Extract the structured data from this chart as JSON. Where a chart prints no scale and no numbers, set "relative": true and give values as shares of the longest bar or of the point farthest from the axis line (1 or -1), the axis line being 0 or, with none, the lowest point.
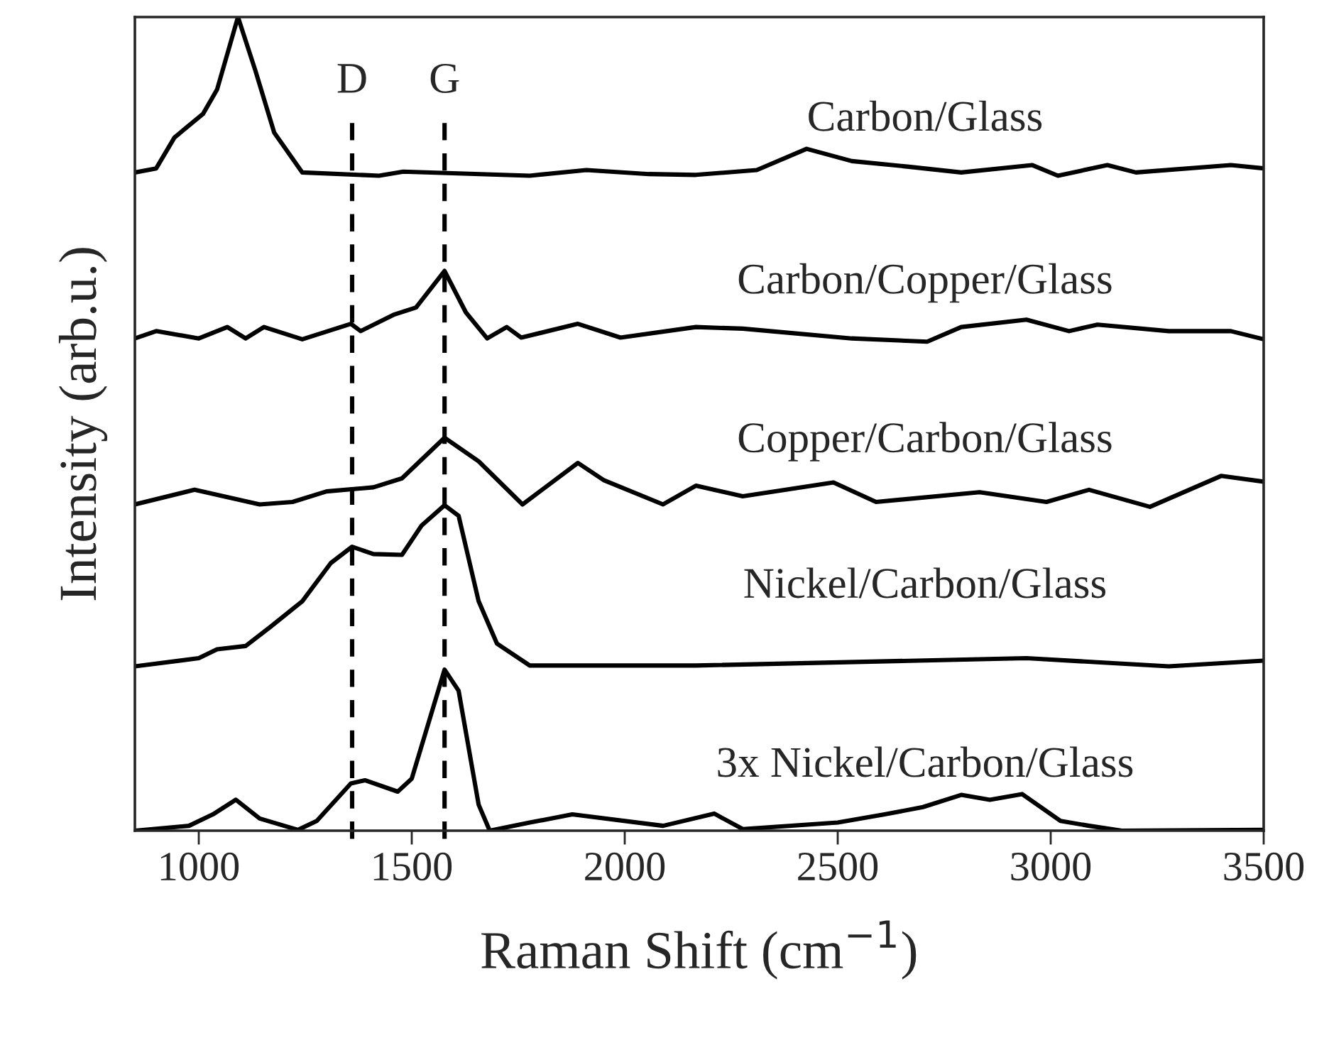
{
  "chart_data": {
    "type": "line",
    "relative": true,
    "xlabel": "Raman Shift (cm$^{−1}$)",
    "ylabel": "Intensity (arb.u.)",
    "xlim": [
      850,
      3500
    ],
    "xticks": [
      1000,
      1500,
      2000,
      2500,
      3000,
      3500
    ],
    "grid": false,
    "legend": false,
    "marker": "none",
    "line_style": "solid",
    "series": [
      {
        "name": "Carbon/Glass",
        "color": "#000000",
        "x": [
          850,
          900,
          943,
          1010,
          1043,
          1092,
          1133,
          1177,
          1243,
          1423,
          1480,
          1777,
          1910,
          2057,
          2167,
          2310,
          2427,
          2533,
          2667,
          2790,
          2957,
          3017,
          3133,
          3200,
          3423,
          3500
        ],
        "values": [
          0.809,
          0.814,
          0.852,
          0.881,
          0.911,
          1.0,
          0.934,
          0.858,
          0.809,
          0.805,
          0.81,
          0.805,
          0.812,
          0.807,
          0.806,
          0.812,
          0.838,
          0.823,
          0.816,
          0.809,
          0.818,
          0.805,
          0.818,
          0.809,
          0.818,
          0.814
        ]
      },
      {
        "name": "Carbon/Copper/Glass",
        "color": "#000000",
        "x": [
          850,
          900,
          1000,
          1067,
          1110,
          1153,
          1243,
          1357,
          1380,
          1457,
          1510,
          1577,
          1627,
          1677,
          1723,
          1757,
          1890,
          1990,
          2167,
          2277,
          2533,
          2710,
          2790,
          2943,
          3043,
          3110,
          3277,
          3423,
          3500
        ],
        "values": [
          0.605,
          0.614,
          0.605,
          0.619,
          0.605,
          0.619,
          0.604,
          0.623,
          0.614,
          0.634,
          0.643,
          0.688,
          0.637,
          0.605,
          0.619,
          0.606,
          0.623,
          0.606,
          0.619,
          0.617,
          0.605,
          0.601,
          0.619,
          0.628,
          0.614,
          0.622,
          0.614,
          0.614,
          0.604
        ]
      },
      {
        "name": "Copper/Carbon/Glass",
        "color": "#000000",
        "x": [
          850,
          990,
          1143,
          1220,
          1300,
          1410,
          1477,
          1577,
          1657,
          1760,
          1890,
          1950,
          2090,
          2167,
          2277,
          2490,
          2590,
          2833,
          2990,
          3090,
          3233,
          3400,
          3500
        ],
        "values": [
          0.401,
          0.419,
          0.401,
          0.404,
          0.417,
          0.422,
          0.433,
          0.483,
          0.454,
          0.401,
          0.452,
          0.431,
          0.401,
          0.424,
          0.411,
          0.428,
          0.404,
          0.416,
          0.404,
          0.419,
          0.398,
          0.436,
          0.429
        ]
      },
      {
        "name": "Nickel/Carbon/Glass",
        "color": "#000000",
        "x": [
          850,
          1000,
          1043,
          1110,
          1167,
          1243,
          1310,
          1360,
          1410,
          1477,
          1523,
          1577,
          1610,
          1657,
          1700,
          1777,
          2167,
          2943,
          3277,
          3500
        ],
        "values": [
          0.202,
          0.212,
          0.223,
          0.227,
          0.25,
          0.282,
          0.329,
          0.349,
          0.34,
          0.339,
          0.375,
          0.4,
          0.387,
          0.282,
          0.23,
          0.203,
          0.203,
          0.212,
          0.202,
          0.209
        ]
      },
      {
        "name": "3x Nickel/Carbon/Glass",
        "color": "#000000",
        "x": [
          850,
          977,
          1033,
          1087,
          1143,
          1233,
          1277,
          1357,
          1390,
          1467,
          1500,
          1577,
          1610,
          1657,
          1683,
          1777,
          1877,
          2090,
          2210,
          2277,
          2500,
          2610,
          2700,
          2790,
          2857,
          2933,
          3023,
          3090,
          3167,
          3500
        ],
        "values": [
          0,
          0.006,
          0.02,
          0.038,
          0.015,
          0.001,
          0.012,
          0.058,
          0.062,
          0.048,
          0.064,
          0.198,
          0.172,
          0.032,
          0,
          0.01,
          0.02,
          0.006,
          0.021,
          0.002,
          0.01,
          0.02,
          0.029,
          0.044,
          0.038,
          0.045,
          0.012,
          0.006,
          0,
          0.001
        ]
      }
    ],
    "ref_lines": [
      {
        "axis": "x",
        "value": 1360,
        "label": "D",
        "color": "#000000",
        "line_style": "dashed"
      },
      {
        "axis": "x",
        "value": 1577,
        "label": "G",
        "color": "#000000",
        "line_style": "dashed"
      }
    ]
  }
}
